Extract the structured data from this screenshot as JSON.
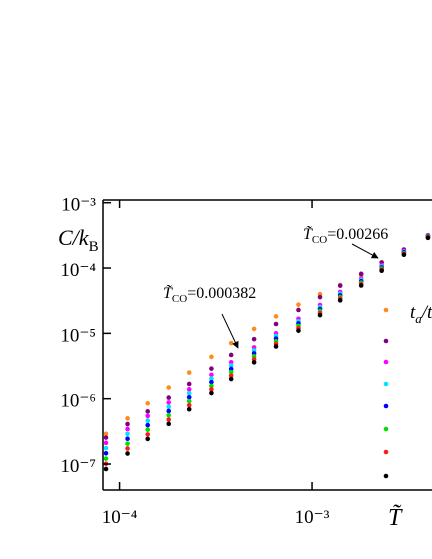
{
  "chart_data": {
    "type": "scatter",
    "log_x": true,
    "log_y": true,
    "xlabel": "T̃",
    "ylabel": "C/k",
    "ylabel_sub": "B",
    "legend_title": "t",
    "legend_title_sub": "a",
    "legend_title_rest": "/t",
    "xlim": [
      8.2e-05,
      0.0042
    ],
    "ylim": [
      4e-08,
      0.0011
    ],
    "xticks": [
      {
        "value": 0.0001,
        "label": "10⁻⁴"
      },
      {
        "value": 0.001,
        "label": "10⁻³"
      }
    ],
    "yticks": [
      {
        "value": 1e-07,
        "label": "10⁻⁷"
      },
      {
        "value": 1e-06,
        "label": "10⁻⁶"
      },
      {
        "value": 1e-05,
        "label": "10⁻⁵"
      },
      {
        "value": 0.0001,
        "label": "10⁻⁴"
      },
      {
        "value": 0.001,
        "label": "10⁻³"
      }
    ],
    "annotations": [
      {
        "symbol": "T̃",
        "sub": "CO",
        "text": "=0.000382"
      },
      {
        "symbol": "T̃",
        "sub": "CO",
        "text": "=0.00266"
      }
    ],
    "x": [
      8.5e-05,
      0.00011,
      0.00014,
      0.00018,
      0.00023,
      0.0003,
      0.00038,
      0.0005,
      0.00065,
      0.00085,
      0.0011,
      0.0014,
      0.0018,
      0.0023,
      0.003,
      0.004
    ],
    "series": [
      {
        "color": "#ff8c1a",
        "values": [
          2.9e-07,
          5e-07,
          8.5e-07,
          1.48e-06,
          2.51e-06,
          4.37e-06,
          7.08e-06,
          1.17e-05,
          1.82e-05,
          2.75e-05,
          3.98e-05,
          5.5e-05,
          7.76e-05,
          0.00011,
          0.00017,
          0.000295
        ]
      },
      {
        "color": "#800080",
        "values": [
          2.54e-07,
          4.09e-07,
          6.4e-07,
          1.04e-06,
          1.68e-06,
          2.88e-06,
          4.67e-06,
          8.15e-06,
          1.39e-05,
          2.28e-05,
          3.58e-05,
          5.37e-05,
          8.15e-05,
          0.000122,
          0.000192,
          0.000318
        ]
      },
      {
        "color": "#ff00ff",
        "values": [
          2.11e-07,
          3.44e-07,
          5.45e-07,
          8.77e-07,
          1.39e-06,
          2.31e-06,
          3.61e-06,
          6.1e-06,
          1e-05,
          1.67e-05,
          2.72e-05,
          4.31e-05,
          6.92e-05,
          0.00011,
          0.000183,
          0.000314
        ]
      },
      {
        "color": "#00e5ff",
        "values": [
          1.75e-07,
          2.9e-07,
          4.62e-07,
          7.53e-07,
          1.21e-06,
          2.04e-06,
          3.21e-06,
          5.48e-06,
          9.14e-06,
          1.53e-05,
          2.53e-05,
          4.06e-05,
          6.59e-05,
          0.000106,
          0.000178,
          0.00031
        ]
      },
      {
        "color": "#0000ff",
        "values": [
          1.46e-07,
          2.44e-07,
          3.94e-07,
          6.49e-07,
          1.05e-06,
          1.79e-06,
          2.85e-06,
          4.93e-06,
          8.32e-06,
          1.42e-05,
          2.36e-05,
          3.82e-05,
          6.28e-05,
          0.000102,
          0.000174,
          0.000306
        ]
      },
      {
        "color": "#00e000",
        "values": [
          1.21e-07,
          2.05e-07,
          3.35e-07,
          5.57e-07,
          9.16e-07,
          1.57e-06,
          2.54e-06,
          4.45e-06,
          7.57e-06,
          1.3e-05,
          2.2e-05,
          3.6e-05,
          5.98e-05,
          9.84e-05,
          0.000169,
          0.000302
        ]
      },
      {
        "color": "#ff1a1a",
        "values": [
          1.01e-07,
          1.73e-07,
          2.84e-07,
          4.8e-07,
          7.96e-07,
          1.39e-06,
          2.25e-06,
          4e-06,
          6.9e-06,
          1.2e-05,
          2.05e-05,
          3.39e-05,
          5.7e-05,
          9.46e-05,
          0.000165,
          0.000299
        ]
      },
      {
        "color": "#000000",
        "values": [
          8.4e-08,
          1.45e-07,
          2.42e-07,
          4.12e-07,
          6.9e-07,
          1.22e-06,
          2e-06,
          3.6e-06,
          6.3e-06,
          1.1e-05,
          1.9e-05,
          3.2e-05,
          5.4e-05,
          9.1e-05,
          0.00016,
          0.00029
        ]
      }
    ]
  }
}
